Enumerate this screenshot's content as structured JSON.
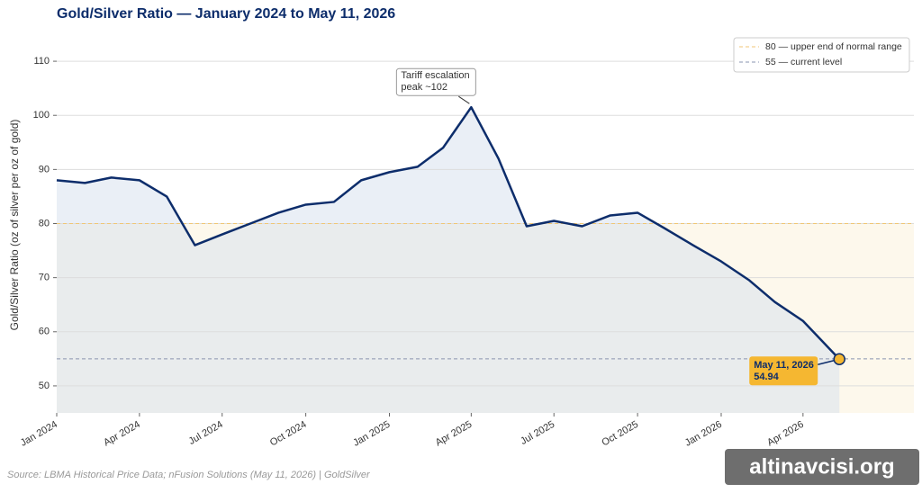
{
  "chart_data": {
    "type": "line",
    "title": "Gold/Silver Ratio — January 2024 to May 11, 2026",
    "y_label": "Gold/Silver Ratio (oz of silver per oz of gold)",
    "source": "Source: LBMA Historical Price Data; nFusion Solutions (May 11, 2026) | GoldSilver",
    "x": [
      "2024-01",
      "2024-02",
      "2024-03",
      "2024-04",
      "2024-05",
      "2024-06",
      "2024-07",
      "2024-08",
      "2024-09",
      "2024-10",
      "2024-11",
      "2024-12",
      "2025-01",
      "2025-02",
      "2025-03",
      "2025-04",
      "2025-05",
      "2025-06",
      "2025-07",
      "2025-08",
      "2025-09",
      "2025-10",
      "2025-11",
      "2025-12",
      "2026-01",
      "2026-02",
      "2026-03",
      "2026-04",
      "2026-05-11"
    ],
    "series": [
      {
        "color": "#0d2d6b",
        "values": [
          88,
          87.5,
          88.5,
          88,
          85,
          76,
          78,
          80,
          82,
          83.5,
          84,
          88,
          89.5,
          90.5,
          94,
          101.5,
          92,
          79.5,
          80.5,
          79.5,
          81.5,
          82,
          79,
          76,
          73,
          69.5,
          65.5,
          62,
          54.94
        ]
      }
    ],
    "xlim": [
      "2024-01",
      "2026-08"
    ],
    "xticks": [
      {
        "value": "2024-01",
        "label": "Jan 2024"
      },
      {
        "value": "2024-04",
        "label": "Apr 2024"
      },
      {
        "value": "2024-07",
        "label": "Jul 2024"
      },
      {
        "value": "2024-10",
        "label": "Oct 2024"
      },
      {
        "value": "2025-01",
        "label": "Jan 2025"
      },
      {
        "value": "2025-04",
        "label": "Apr 2025"
      },
      {
        "value": "2025-07",
        "label": "Jul 2025"
      },
      {
        "value": "2025-10",
        "label": "Oct 2025"
      },
      {
        "value": "2026-01",
        "label": "Jan 2026"
      },
      {
        "value": "2026-04",
        "label": "Apr 2026"
      }
    ],
    "ylim": [
      45,
      115
    ],
    "yticks": [
      50,
      60,
      70,
      80,
      90,
      100,
      110
    ],
    "grid": true,
    "legend_position": "upper right",
    "reference_lines": [
      {
        "value": 80,
        "label": "80 — upper end of normal range",
        "color": "#f0c674"
      },
      {
        "value": 55,
        "label": "55 — current level",
        "color": "#8a94b0"
      }
    ],
    "peak_annotation": {
      "lines": [
        "Tariff escalation",
        "peak ~102"
      ],
      "index": 15
    },
    "last_annotation": {
      "date": "May 11, 2026",
      "color": "#f5b731"
    },
    "watermark": "altinavcisi.org"
  }
}
